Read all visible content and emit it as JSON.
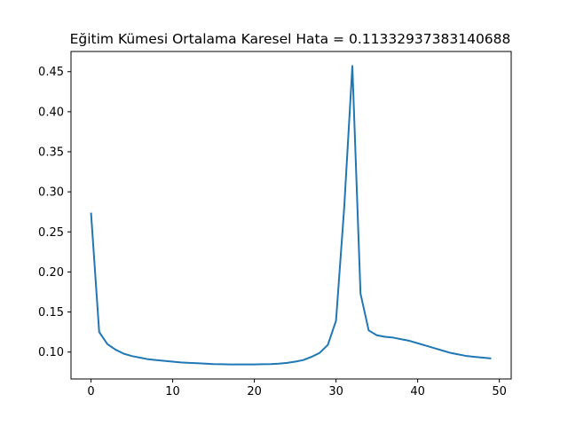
{
  "chart_data": {
    "type": "line",
    "title": "Eğitim Kümesi Ortalama Karesel Hata = 0.11332937383140688",
    "xlabel": "",
    "ylabel": "",
    "xlim": [
      -2.45,
      51.45
    ],
    "ylim": [
      0.0664,
      0.4752
    ],
    "x_ticks": [
      0,
      10,
      20,
      30,
      40,
      50
    ],
    "y_ticks": [
      0.1,
      0.15,
      0.2,
      0.25,
      0.3,
      0.35,
      0.4,
      0.45
    ],
    "x_tick_labels": [
      "0",
      "10",
      "20",
      "30",
      "40",
      "50"
    ],
    "y_tick_labels": [
      "0.10",
      "0.15",
      "0.20",
      "0.25",
      "0.30",
      "0.35",
      "0.40",
      "0.45"
    ],
    "grid": false,
    "legend": "none",
    "line_color": "#1f77b4",
    "series": [
      {
        "x": [
          0,
          1,
          2,
          3,
          4,
          5,
          6,
          7,
          8,
          9,
          10,
          11,
          12,
          13,
          14,
          15,
          16,
          17,
          18,
          19,
          20,
          21,
          22,
          23,
          24,
          25,
          26,
          27,
          28,
          29,
          30,
          31,
          32,
          33,
          34,
          35,
          36,
          37,
          38,
          39,
          40,
          41,
          42,
          43,
          44,
          45,
          46,
          47,
          48,
          49
        ],
        "values": [
          0.274,
          0.125,
          0.11,
          0.103,
          0.098,
          0.095,
          0.093,
          0.091,
          0.09,
          0.089,
          0.088,
          0.087,
          0.0865,
          0.086,
          0.0855,
          0.085,
          0.0848,
          0.0846,
          0.0845,
          0.0845,
          0.0846,
          0.0848,
          0.085,
          0.0855,
          0.0865,
          0.088,
          0.09,
          0.094,
          0.099,
          0.109,
          0.139,
          0.28,
          0.457,
          0.173,
          0.127,
          0.121,
          0.119,
          0.118,
          0.116,
          0.114,
          0.111,
          0.108,
          0.105,
          0.102,
          0.099,
          0.097,
          0.095,
          0.094,
          0.093,
          0.092
        ]
      }
    ]
  }
}
